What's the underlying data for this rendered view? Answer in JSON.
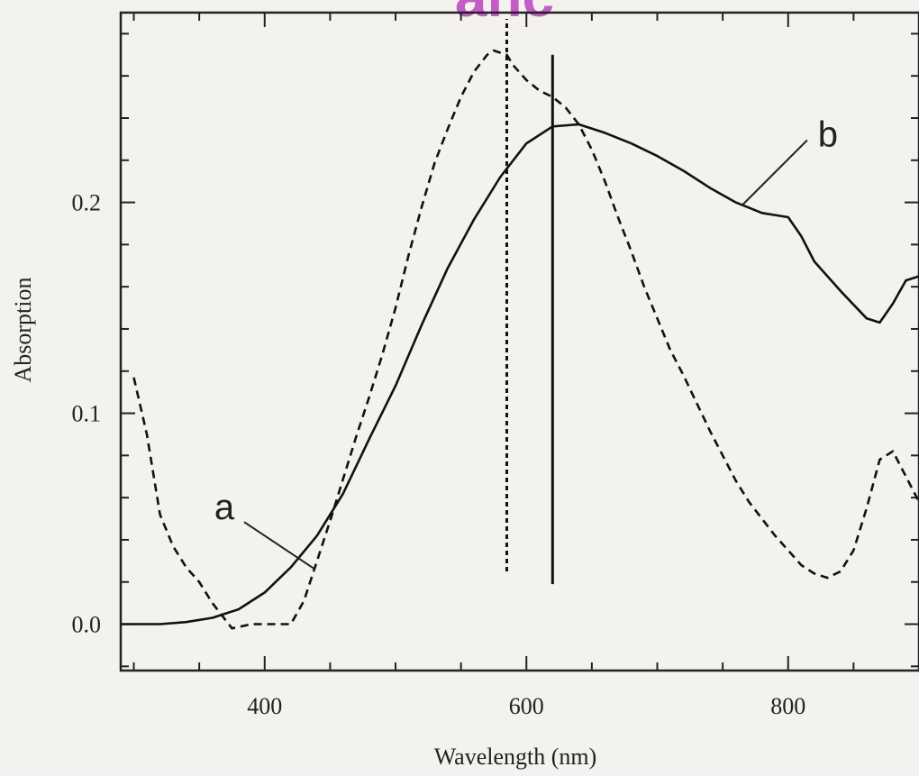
{
  "watermark": "anc",
  "chart_data": {
    "type": "line",
    "xlabel": "Wavelength (nm)",
    "ylabel": "Absorption",
    "xlim": [
      290,
      900
    ],
    "ylim": [
      -0.022,
      0.29
    ],
    "x_ticks": [
      400,
      600,
      800
    ],
    "y_ticks": [
      0.0,
      0.1,
      0.2
    ],
    "y_tick_labels": [
      "0.0",
      "0.1",
      "0.2"
    ],
    "grid": false,
    "series": [
      {
        "name": "a",
        "style": "dashed",
        "x": [
          300,
          310,
          320,
          330,
          340,
          350,
          360,
          375,
          390,
          400,
          410,
          420,
          430,
          440,
          450,
          460,
          470,
          480,
          490,
          500,
          510,
          520,
          530,
          540,
          550,
          560,
          570,
          575,
          585,
          590,
          600,
          610,
          620,
          630,
          640,
          650,
          660,
          670,
          680,
          690,
          700,
          710,
          720,
          730,
          740,
          750,
          760,
          770,
          780,
          790,
          800,
          810,
          820,
          830,
          840,
          850,
          860,
          870,
          880,
          890,
          900
        ],
        "y": [
          0.117,
          0.09,
          0.052,
          0.037,
          0.027,
          0.02,
          0.01,
          -0.002,
          0.0,
          0.0,
          0.0,
          0.0,
          0.011,
          0.03,
          0.049,
          0.069,
          0.089,
          0.108,
          0.128,
          0.15,
          0.175,
          0.198,
          0.219,
          0.235,
          0.25,
          0.262,
          0.27,
          0.272,
          0.27,
          0.265,
          0.258,
          0.253,
          0.25,
          0.245,
          0.237,
          0.225,
          0.21,
          0.193,
          0.177,
          0.16,
          0.145,
          0.13,
          0.118,
          0.105,
          0.092,
          0.08,
          0.068,
          0.058,
          0.05,
          0.042,
          0.035,
          0.028,
          0.024,
          0.022,
          0.025,
          0.035,
          0.055,
          0.078,
          0.082,
          0.07,
          0.058
        ]
      },
      {
        "name": "b",
        "style": "solid",
        "x": [
          290,
          300,
          320,
          340,
          360,
          380,
          400,
          420,
          440,
          460,
          480,
          500,
          520,
          540,
          560,
          580,
          600,
          620,
          640,
          660,
          680,
          700,
          720,
          740,
          760,
          780,
          790,
          800,
          810,
          820,
          840,
          860,
          870,
          880,
          890,
          900
        ],
        "y": [
          0.0,
          0.0,
          0.0,
          0.001,
          0.003,
          0.007,
          0.015,
          0.027,
          0.042,
          0.062,
          0.088,
          0.113,
          0.142,
          0.169,
          0.192,
          0.212,
          0.228,
          0.236,
          0.237,
          0.233,
          0.228,
          0.222,
          0.215,
          0.207,
          0.2,
          0.195,
          0.194,
          0.193,
          0.184,
          0.172,
          0.158,
          0.145,
          0.143,
          0.152,
          0.163,
          0.165
        ]
      }
    ],
    "reference_lines": [
      {
        "x": 585,
        "style": "dotted",
        "y_range": [
          0.025,
          0.287
        ]
      },
      {
        "x": 620,
        "style": "solid",
        "y_range": [
          0.019,
          0.27
        ]
      }
    ],
    "annotations": [
      {
        "text": "a",
        "series": "a",
        "point_to_x": 438
      },
      {
        "text": "b",
        "series": "b",
        "point_to_x": 765
      }
    ]
  }
}
